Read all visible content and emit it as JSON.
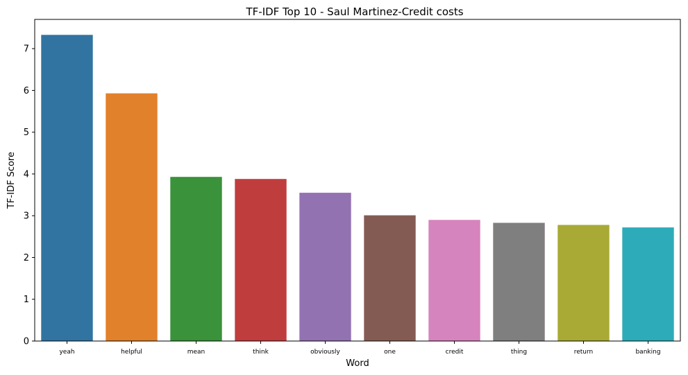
{
  "chart_data": {
    "type": "bar",
    "title": "TF-IDF Top 10 - Saul Martinez-Credit costs",
    "xlabel": "Word",
    "ylabel": "TF-IDF Score",
    "categories": [
      "yeah",
      "helpful",
      "mean",
      "think",
      "obviously",
      "one",
      "credit",
      "thing",
      "return",
      "banking"
    ],
    "values": [
      7.33,
      5.93,
      3.93,
      3.88,
      3.55,
      3.01,
      2.9,
      2.83,
      2.78,
      2.72
    ],
    "colors": [
      "#3274a1",
      "#e1812c",
      "#3a923a",
      "#c03d3e",
      "#9372b2",
      "#845b53",
      "#d684bd",
      "#7f7f7f",
      "#a9aa35",
      "#2eabb8"
    ],
    "ylim": [
      0,
      7.7
    ],
    "yticks": [
      "0",
      "1",
      "2",
      "3",
      "4",
      "5",
      "6",
      "7"
    ],
    "grid": false,
    "legend": "none"
  }
}
